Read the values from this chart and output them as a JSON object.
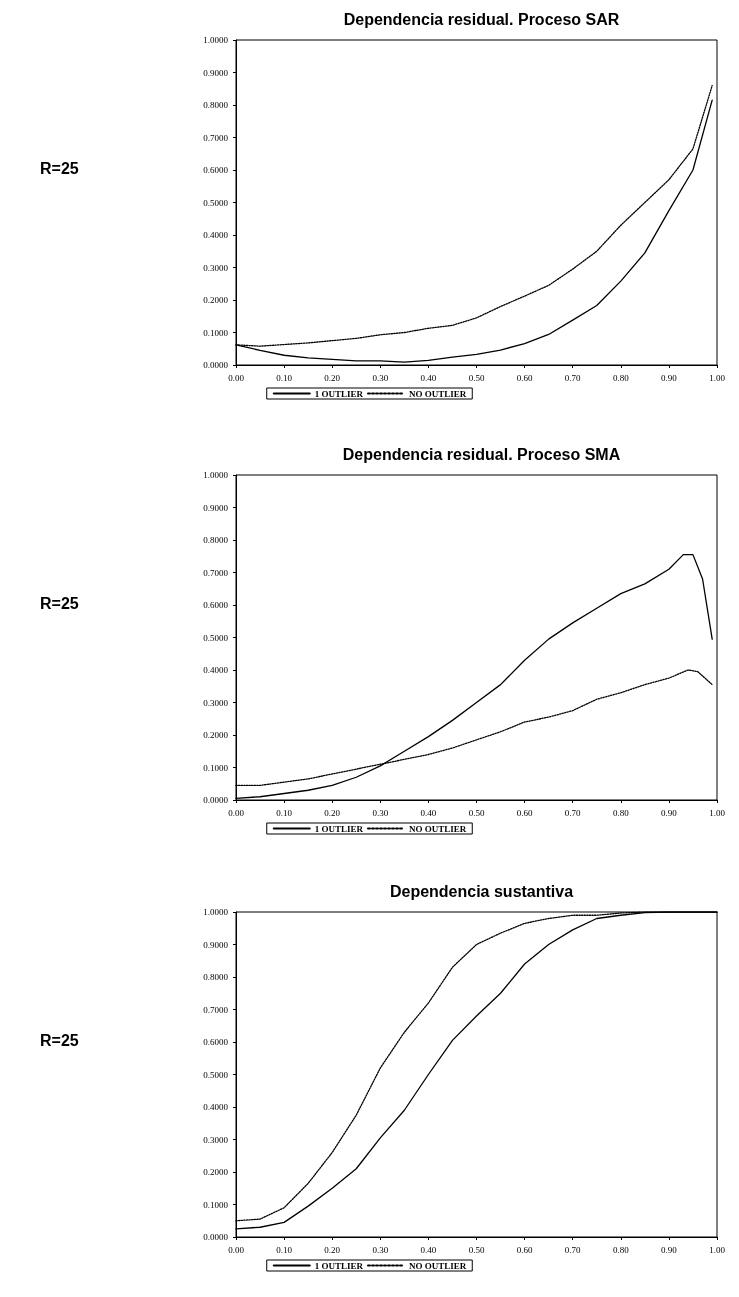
{
  "chart_data": [
    {
      "type": "line",
      "title": "Dependencia residual. Proceso SAR",
      "annotations": [
        "R=25"
      ],
      "legend": "bottom",
      "grid": false,
      "marker": "none",
      "x": [
        0,
        0.05,
        0.1,
        0.15,
        0.2,
        0.25,
        0.3,
        0.35,
        0.4,
        0.45,
        0.5,
        0.55,
        0.6,
        0.65,
        0.7,
        0.75,
        0.8,
        0.85,
        0.9,
        0.95,
        0.99
      ],
      "series": [
        {
          "name": "1 OUTLIER",
          "color": "#000000",
          "line_style": "solid",
          "values": [
            0.062,
            0.045,
            0.03,
            0.022,
            0.017,
            0.013,
            0.013,
            0.009,
            0.014,
            0.024,
            0.033,
            0.046,
            0.066,
            0.094,
            0.138,
            0.183,
            0.258,
            0.345,
            0.475,
            0.6,
            0.815
          ]
        },
        {
          "name": "NO OUTLIER",
          "color": "#000000",
          "line_style": "dotted",
          "values": [
            0.062,
            0.058,
            0.063,
            0.068,
            0.075,
            0.082,
            0.093,
            0.1,
            0.113,
            0.122,
            0.145,
            0.18,
            0.212,
            0.245,
            0.295,
            0.35,
            0.43,
            0.5,
            0.57,
            0.665,
            0.86
          ]
        }
      ],
      "xlim": [
        0,
        1
      ],
      "xticks": [
        {
          "value": 0,
          "label": "0.00"
        },
        {
          "value": 0.1,
          "label": "0.10"
        },
        {
          "value": 0.2,
          "label": "0.20"
        },
        {
          "value": 0.3,
          "label": "0.30"
        },
        {
          "value": 0.4,
          "label": "0.40"
        },
        {
          "value": 0.5,
          "label": "0.50"
        },
        {
          "value": 0.6,
          "label": "0.60"
        },
        {
          "value": 0.7,
          "label": "0.70"
        },
        {
          "value": 0.8,
          "label": "0.80"
        },
        {
          "value": 0.9,
          "label": "0.90"
        },
        {
          "value": 1,
          "label": "1.00"
        }
      ],
      "ylim": [
        0,
        1
      ],
      "yticks": [
        {
          "value": 0,
          "label": "0.0000"
        },
        {
          "value": 0.1,
          "label": "0.1000"
        },
        {
          "value": 0.2,
          "label": "0.2000"
        },
        {
          "value": 0.3,
          "label": "0.3000"
        },
        {
          "value": 0.4,
          "label": "0.4000"
        },
        {
          "value": 0.5,
          "label": "0.5000"
        },
        {
          "value": 0.6,
          "label": "0.6000"
        },
        {
          "value": 0.7,
          "label": "0.7000"
        },
        {
          "value": 0.8,
          "label": "0.8000"
        },
        {
          "value": 0.9,
          "label": "0.9000"
        },
        {
          "value": 1,
          "label": "1.0000"
        }
      ]
    },
    {
      "type": "line",
      "title": "Dependencia residual. Proceso SMA",
      "annotations": [
        "R=25"
      ],
      "legend": "bottom",
      "grid": false,
      "marker": "none",
      "series": [
        {
          "name": "1 OUTLIER",
          "color": "#000000",
          "line_style": "solid",
          "x": [
            0,
            0.05,
            0.1,
            0.15,
            0.2,
            0.25,
            0.3,
            0.35,
            0.4,
            0.45,
            0.5,
            0.55,
            0.6,
            0.65,
            0.7,
            0.75,
            0.8,
            0.85,
            0.9,
            0.93,
            0.95,
            0.97,
            0.99
          ],
          "values": [
            0.005,
            0.01,
            0.02,
            0.03,
            0.045,
            0.07,
            0.105,
            0.15,
            0.195,
            0.245,
            0.3,
            0.355,
            0.43,
            0.495,
            0.545,
            0.59,
            0.635,
            0.665,
            0.71,
            0.755,
            0.755,
            0.68,
            0.495
          ]
        },
        {
          "name": "NO OUTLIER",
          "color": "#000000",
          "line_style": "dotted",
          "x": [
            0,
            0.05,
            0.1,
            0.15,
            0.2,
            0.25,
            0.3,
            0.35,
            0.4,
            0.45,
            0.5,
            0.55,
            0.6,
            0.65,
            0.7,
            0.75,
            0.8,
            0.85,
            0.9,
            0.94,
            0.96,
            0.99
          ],
          "values": [
            0.045,
            0.045,
            0.055,
            0.065,
            0.08,
            0.095,
            0.11,
            0.125,
            0.14,
            0.16,
            0.185,
            0.21,
            0.24,
            0.255,
            0.275,
            0.31,
            0.33,
            0.355,
            0.375,
            0.4,
            0.395,
            0.355
          ]
        }
      ],
      "xlim": [
        0,
        1
      ],
      "xticks": [
        {
          "value": 0,
          "label": "0.00"
        },
        {
          "value": 0.1,
          "label": "0.10"
        },
        {
          "value": 0.2,
          "label": "0.20"
        },
        {
          "value": 0.3,
          "label": "0.30"
        },
        {
          "value": 0.4,
          "label": "0.40"
        },
        {
          "value": 0.5,
          "label": "0.50"
        },
        {
          "value": 0.6,
          "label": "0.60"
        },
        {
          "value": 0.7,
          "label": "0.70"
        },
        {
          "value": 0.8,
          "label": "0.80"
        },
        {
          "value": 0.9,
          "label": "0.90"
        },
        {
          "value": 1,
          "label": "1.00"
        }
      ],
      "ylim": [
        0,
        1
      ],
      "yticks": [
        {
          "value": 0,
          "label": "0.0000"
        },
        {
          "value": 0.1,
          "label": "0.1000"
        },
        {
          "value": 0.2,
          "label": "0.2000"
        },
        {
          "value": 0.3,
          "label": "0.3000"
        },
        {
          "value": 0.4,
          "label": "0.4000"
        },
        {
          "value": 0.5,
          "label": "0.5000"
        },
        {
          "value": 0.6,
          "label": "0.6000"
        },
        {
          "value": 0.7,
          "label": "0.7000"
        },
        {
          "value": 0.8,
          "label": "0.8000"
        },
        {
          "value": 0.9,
          "label": "0.9000"
        },
        {
          "value": 1,
          "label": "1.0000"
        }
      ]
    },
    {
      "type": "line",
      "title": "Dependencia sustantiva",
      "annotations": [
        "R=25"
      ],
      "legend": "bottom",
      "grid": false,
      "marker": "none",
      "x": [
        0,
        0.05,
        0.1,
        0.15,
        0.2,
        0.25,
        0.3,
        0.35,
        0.4,
        0.45,
        0.5,
        0.55,
        0.6,
        0.65,
        0.7,
        0.75,
        0.8,
        0.85,
        0.9,
        0.95,
        1
      ],
      "series": [
        {
          "name": "1 OUTLIER",
          "color": "#000000",
          "line_style": "solid",
          "values": [
            0.025,
            0.03,
            0.045,
            0.095,
            0.15,
            0.21,
            0.305,
            0.39,
            0.5,
            0.605,
            0.68,
            0.75,
            0.84,
            0.9,
            0.945,
            0.98,
            0.99,
            0.998,
            1,
            1,
            1
          ]
        },
        {
          "name": "NO OUTLIER",
          "color": "#000000",
          "line_style": "dotted",
          "values": [
            0.05,
            0.055,
            0.09,
            0.165,
            0.26,
            0.375,
            0.52,
            0.63,
            0.72,
            0.83,
            0.9,
            0.935,
            0.965,
            0.98,
            0.99,
            0.99,
            0.997,
            1,
            1,
            1,
            1
          ]
        }
      ],
      "xlim": [
        0,
        1
      ],
      "xticks": [
        {
          "value": 0,
          "label": "0.00"
        },
        {
          "value": 0.1,
          "label": "0.10"
        },
        {
          "value": 0.2,
          "label": "0.20"
        },
        {
          "value": 0.3,
          "label": "0.30"
        },
        {
          "value": 0.4,
          "label": "0.40"
        },
        {
          "value": 0.5,
          "label": "0.50"
        },
        {
          "value": 0.6,
          "label": "0.60"
        },
        {
          "value": 0.7,
          "label": "0.70"
        },
        {
          "value": 0.8,
          "label": "0.80"
        },
        {
          "value": 0.9,
          "label": "0.90"
        },
        {
          "value": 1,
          "label": "1.00"
        }
      ],
      "ylim": [
        0,
        1
      ],
      "yticks": [
        {
          "value": 0,
          "label": "0.0000"
        },
        {
          "value": 0.1,
          "label": "0.1000"
        },
        {
          "value": 0.2,
          "label": "0.2000"
        },
        {
          "value": 0.3,
          "label": "0.3000"
        },
        {
          "value": 0.4,
          "label": "0.4000"
        },
        {
          "value": 0.5,
          "label": "0.5000"
        },
        {
          "value": 0.6,
          "label": "0.6000"
        },
        {
          "value": 0.7,
          "label": "0.7000"
        },
        {
          "value": 0.8,
          "label": "0.8000"
        },
        {
          "value": 0.9,
          "label": "0.9000"
        },
        {
          "value": 1,
          "label": "1.0000"
        }
      ]
    }
  ]
}
